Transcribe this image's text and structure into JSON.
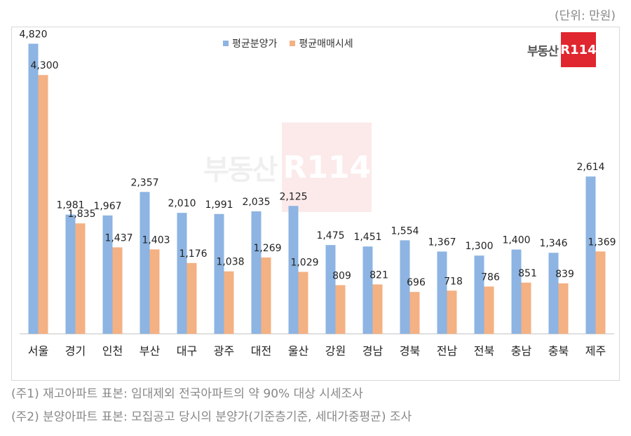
{
  "unit_label": "(단위: 만원)",
  "logo": {
    "text": "부동산",
    "badge": "R114"
  },
  "notes": [
    "(주1) 재고아파트 표본: 임대제외 전국아파트의 약 90% 대상 시세조사",
    "(주2) 분양아파트 표본: 모집공고 당시의 분양가(기준층기준, 세대가중평균) 조사"
  ],
  "colors": {
    "series1": "#8db4e2",
    "series2": "#f4b183",
    "frame": "#d8d8d8",
    "logo": "#e0262f"
  },
  "chart_data": {
    "type": "bar",
    "categories": [
      "서울",
      "경기",
      "인천",
      "부산",
      "대구",
      "광주",
      "대전",
      "울산",
      "강원",
      "경남",
      "경북",
      "전남",
      "전북",
      "충남",
      "충북",
      "제주"
    ],
    "series": [
      {
        "name": "평균분양가",
        "values": [
          4820,
          1981,
          1967,
          2357,
          2010,
          1991,
          2035,
          2125,
          1475,
          1451,
          1554,
          1367,
          1300,
          1400,
          1346,
          2614
        ]
      },
      {
        "name": "평균매매시세",
        "values": [
          4300,
          1835,
          1437,
          1403,
          1176,
          1038,
          1269,
          1029,
          809,
          821,
          696,
          718,
          786,
          851,
          839,
          1369
        ]
      }
    ],
    "ylim": [
      0,
      5000
    ],
    "grid": false,
    "legend": "top-center"
  }
}
